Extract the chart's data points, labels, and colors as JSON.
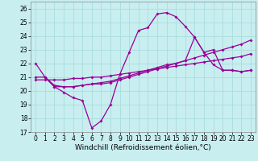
{
  "xlabel": "Windchill (Refroidissement éolien,°C)",
  "ylabel": "",
  "bg_color": "#c8eef0",
  "line_color": "#990099",
  "grid_color": "#aadddd",
  "xlim": [
    -0.5,
    23.5
  ],
  "ylim": [
    17,
    26.5
  ],
  "yticks": [
    17,
    18,
    19,
    20,
    21,
    22,
    23,
    24,
    25,
    26
  ],
  "xticks": [
    0,
    1,
    2,
    3,
    4,
    5,
    6,
    7,
    8,
    9,
    10,
    11,
    12,
    13,
    14,
    15,
    16,
    17,
    18,
    19,
    20,
    21,
    22,
    23
  ],
  "line1_x": [
    0,
    1,
    2,
    3,
    4,
    5,
    6,
    7,
    8,
    9,
    10,
    11,
    12,
    13,
    14,
    15,
    16,
    17,
    18,
    19,
    20,
    21,
    22,
    23
  ],
  "line1_y": [
    22.0,
    21.0,
    20.3,
    19.9,
    19.5,
    19.3,
    17.3,
    17.8,
    19.0,
    21.2,
    22.8,
    24.4,
    24.6,
    25.6,
    25.7,
    25.4,
    24.7,
    23.9,
    22.8,
    21.9,
    21.5,
    21.5,
    21.4,
    21.5
  ],
  "line2_x": [
    0,
    1,
    2,
    3,
    4,
    5,
    6,
    7,
    8,
    9,
    10,
    11,
    12,
    13,
    14,
    15,
    16,
    17,
    18,
    19,
    20,
    21,
    22,
    23
  ],
  "line2_y": [
    21.0,
    21.0,
    20.4,
    20.3,
    20.3,
    20.4,
    20.5,
    20.6,
    20.7,
    20.9,
    21.1,
    21.3,
    21.5,
    21.7,
    21.9,
    22.0,
    22.2,
    22.4,
    22.6,
    22.8,
    23.0,
    23.2,
    23.4,
    23.7
  ],
  "line3_x": [
    0,
    1,
    2,
    3,
    4,
    5,
    6,
    7,
    8,
    9,
    10,
    11,
    12,
    13,
    14,
    15,
    16,
    17,
    18,
    19,
    20,
    21,
    22,
    23
  ],
  "line3_y": [
    20.8,
    20.8,
    20.8,
    20.8,
    20.9,
    20.9,
    21.0,
    21.0,
    21.1,
    21.2,
    21.3,
    21.4,
    21.5,
    21.6,
    21.7,
    21.8,
    21.9,
    22.0,
    22.1,
    22.2,
    22.3,
    22.4,
    22.5,
    22.7
  ],
  "line4_x": [
    1,
    2,
    3,
    4,
    5,
    6,
    7,
    8,
    9,
    10,
    11,
    12,
    13,
    14,
    15,
    16,
    17,
    18,
    19,
    20,
    21,
    22,
    23
  ],
  "line4_y": [
    21.0,
    20.3,
    20.3,
    20.3,
    20.4,
    20.5,
    20.5,
    20.6,
    20.8,
    21.0,
    21.2,
    21.4,
    21.6,
    21.8,
    22.0,
    22.2,
    23.9,
    22.8,
    23.0,
    21.5,
    21.5,
    21.4,
    21.5
  ],
  "tick_fontsize": 5.5,
  "label_fontsize": 6.5
}
